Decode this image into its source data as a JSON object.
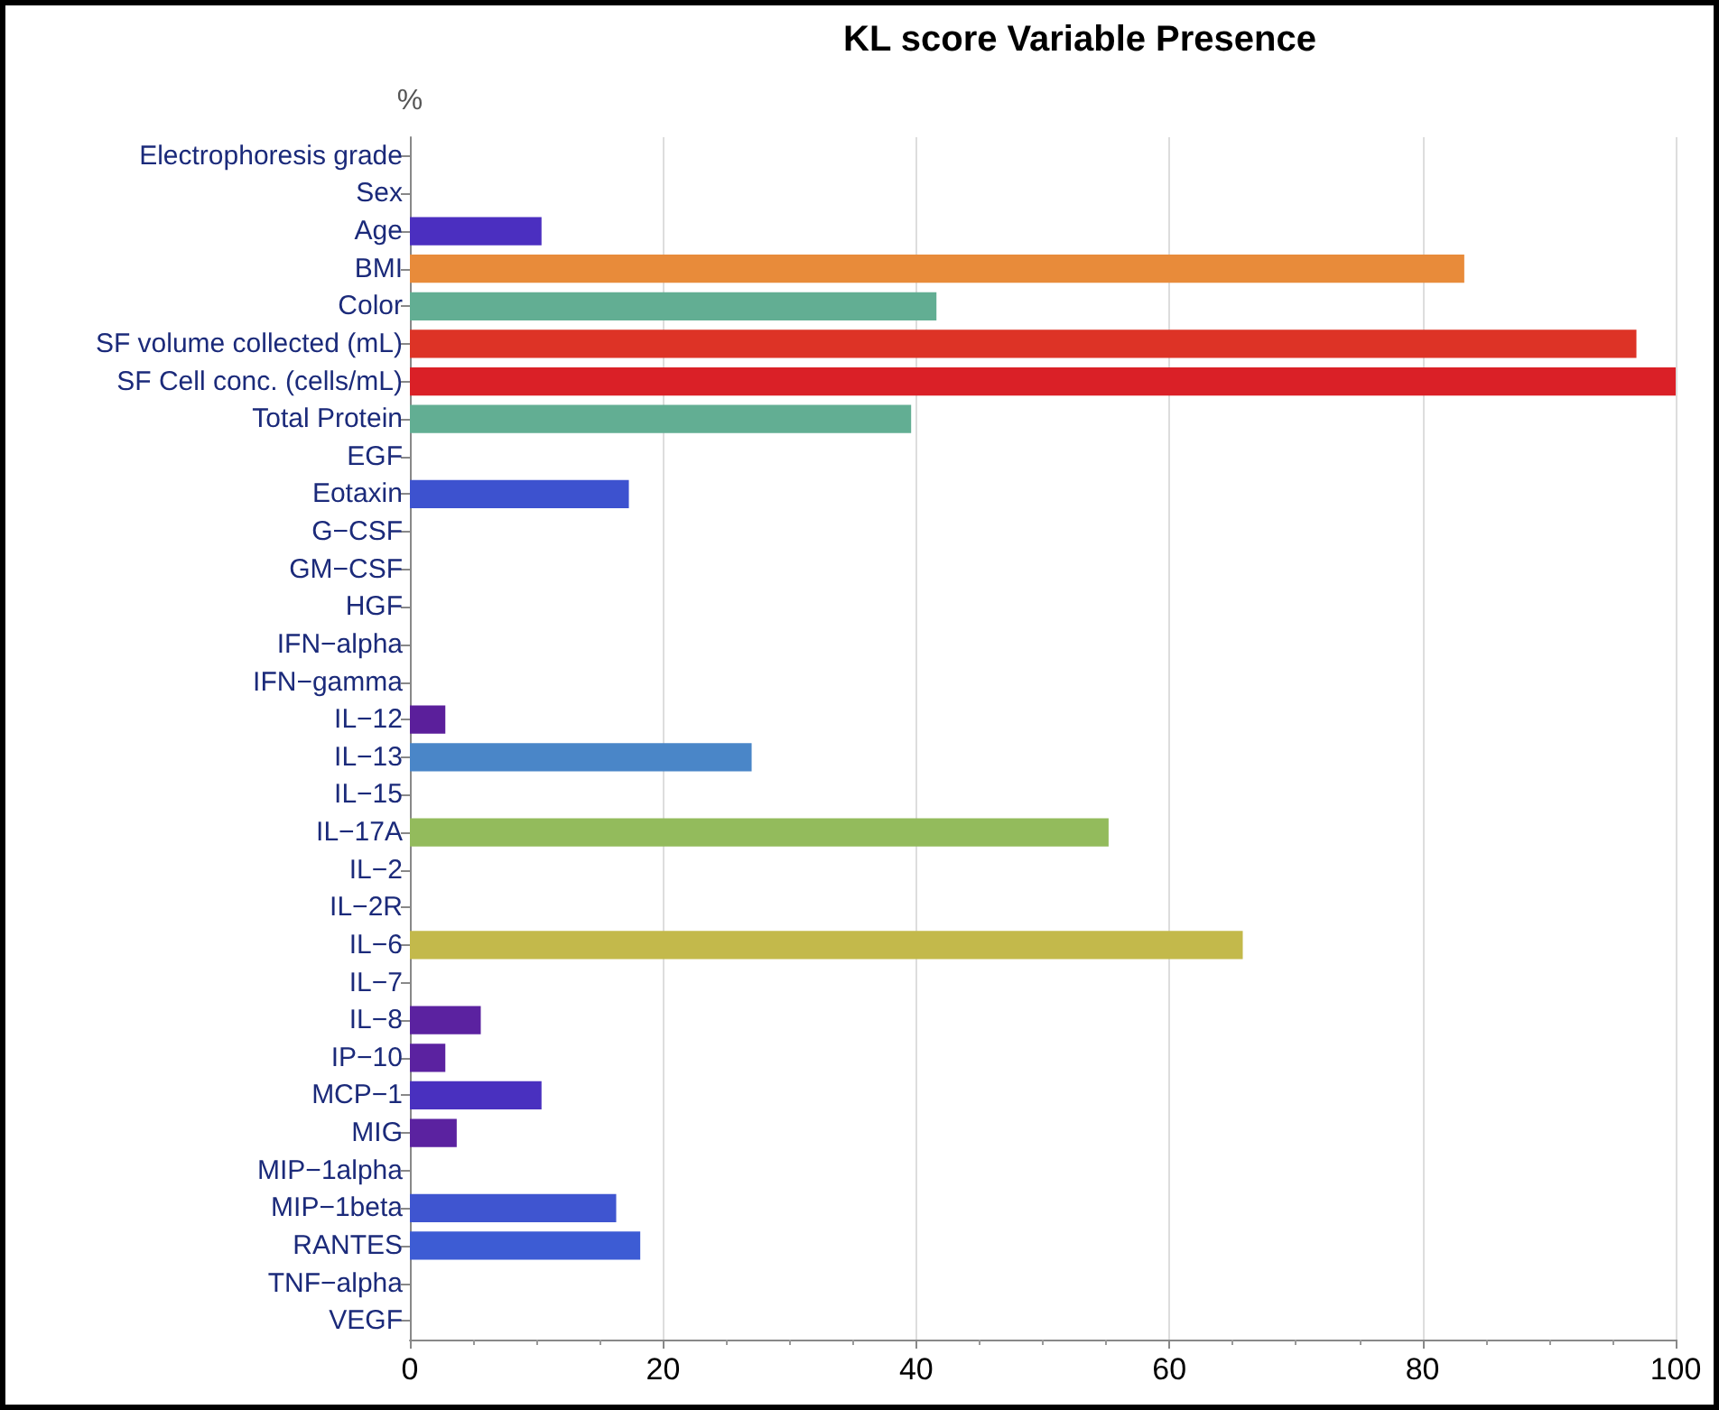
{
  "chart_data": {
    "type": "bar",
    "orientation": "horizontal",
    "title": "KL score Variable Presence",
    "xlabel": "%",
    "categories": [
      "Electrophoresis grade",
      "Sex",
      "Age",
      "BMI",
      "Color",
      "SF volume collected (mL)",
      "SF Cell conc. (cells/mL)",
      "Total Protein",
      "EGF",
      "Eotaxin",
      "G−CSF",
      "GM−CSF",
      "HGF",
      "IFN−alpha",
      "IFN−gamma",
      "IL−12",
      "IL−13",
      "IL−15",
      "IL−17A",
      "IL−2",
      "IL−2R",
      "IL−6",
      "IL−7",
      "IL−8",
      "IP−10",
      "MCP−1",
      "MIG",
      "MIP−1alpha",
      "MIP−1beta",
      "RANTES",
      "TNF−alpha",
      "VEGF"
    ],
    "values": [
      0,
      0,
      10.4,
      83.3,
      41.6,
      96.9,
      100,
      39.6,
      0,
      17.3,
      0,
      0,
      0,
      0,
      0,
      2.8,
      27,
      0,
      55.2,
      0,
      0,
      65.8,
      0,
      5.6,
      2.8,
      10.4,
      3.7,
      0,
      16.3,
      18.2,
      0,
      0
    ],
    "colors": [
      "#5b22a0",
      "#5b22a0",
      "#4b2fc0",
      "#e88b3a",
      "#62ae93",
      "#dd3326",
      "#da2027",
      "#62ae93",
      "#5b22a0",
      "#3d52cf",
      "#5b22a0",
      "#5b22a0",
      "#5b22a0",
      "#5b22a0",
      "#5b22a0",
      "#5b1f9b",
      "#4a86c8",
      "#5b22a0",
      "#93bb5c",
      "#5b22a0",
      "#5b22a0",
      "#c3b94b",
      "#5b22a0",
      "#5b22a0",
      "#5b22a0",
      "#4930bf",
      "#5b22a0",
      "#5b22a0",
      "#3f55d0",
      "#3d5cd4",
      "#5b22a0",
      "#5b22a0"
    ],
    "xlim": [
      0,
      100
    ],
    "xticks": [
      0,
      20,
      40,
      60,
      80,
      100
    ],
    "grid": "x"
  }
}
